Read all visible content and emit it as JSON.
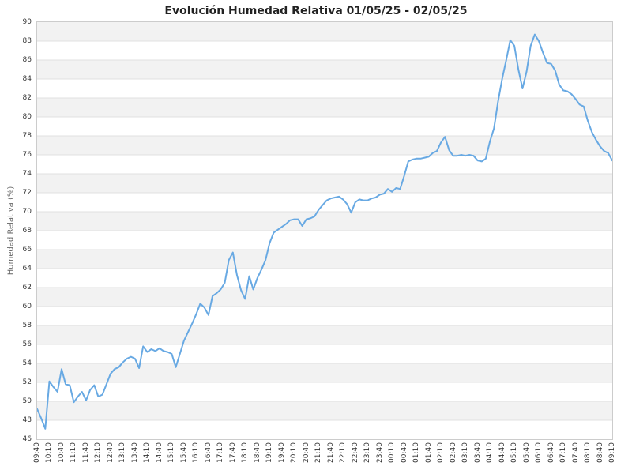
{
  "chart_data": {
    "type": "line",
    "title": "Evolución Humedad Relativa 01/05/25 - 02/05/25",
    "xlabel": "",
    "ylabel": "Humedad Relativa (%)",
    "ylim": [
      46,
      90
    ],
    "ytick_step": 2,
    "grid": true,
    "legend": false,
    "series_name": "Humedad Relativa",
    "colors": {
      "line": "#68a9e3",
      "band": "#f2f2f2",
      "band_alt": "#ffffff",
      "grid": "#e0e0e0",
      "border": "#cccccc",
      "title": "#222222",
      "tick": "#333333",
      "axis_title": "#666666"
    },
    "yticks": [
      90,
      88,
      86,
      84,
      82,
      80,
      78,
      76,
      74,
      72,
      70,
      68,
      66,
      64,
      62,
      60,
      58,
      56,
      54,
      52,
      50,
      48,
      46
    ],
    "xticks": [
      "09:40",
      "10:10",
      "10:40",
      "11:10",
      "11:40",
      "12:10",
      "12:40",
      "13:10",
      "13:40",
      "14:10",
      "14:40",
      "15:10",
      "15:40",
      "16:10",
      "16:40",
      "17:10",
      "17:40",
      "18:10",
      "18:40",
      "19:10",
      "19:40",
      "20:10",
      "20:40",
      "21:10",
      "21:40",
      "22:10",
      "22:40",
      "23:10",
      "23:40",
      "00:10",
      "00:40",
      "01:10",
      "01:40",
      "02:10",
      "02:40",
      "03:10",
      "03:40",
      "04:10",
      "04:40",
      "05:10",
      "05:40",
      "06:10",
      "06:40",
      "07:10",
      "07:40",
      "08:10",
      "08:40",
      "09:10"
    ],
    "x": [
      "09:40",
      "09:50",
      "10:00",
      "10:10",
      "10:20",
      "10:30",
      "10:40",
      "10:50",
      "11:00",
      "11:10",
      "11:20",
      "11:30",
      "11:40",
      "11:50",
      "12:00",
      "12:10",
      "12:20",
      "12:30",
      "12:40",
      "12:50",
      "13:00",
      "13:10",
      "13:20",
      "13:30",
      "13:40",
      "13:50",
      "14:00",
      "14:10",
      "14:20",
      "14:30",
      "14:40",
      "14:50",
      "15:00",
      "15:10",
      "15:20",
      "15:30",
      "15:40",
      "15:50",
      "16:00",
      "16:10",
      "16:20",
      "16:30",
      "16:40",
      "16:50",
      "17:00",
      "17:10",
      "17:20",
      "17:30",
      "17:40",
      "17:50",
      "18:00",
      "18:10",
      "18:20",
      "18:30",
      "18:40",
      "18:50",
      "19:00",
      "19:10",
      "19:20",
      "19:30",
      "19:40",
      "19:50",
      "20:00",
      "20:10",
      "20:20",
      "20:30",
      "20:40",
      "20:50",
      "21:00",
      "21:10",
      "21:20",
      "21:30",
      "21:40",
      "21:50",
      "22:00",
      "22:10",
      "22:20",
      "22:30",
      "22:40",
      "22:50",
      "23:00",
      "23:10",
      "23:20",
      "23:30",
      "23:40",
      "23:50",
      "00:00",
      "00:10",
      "00:20",
      "00:30",
      "00:40",
      "00:50",
      "01:00",
      "01:10",
      "01:20",
      "01:30",
      "01:40",
      "01:50",
      "02:00",
      "02:10",
      "02:20",
      "02:30",
      "02:40",
      "02:50",
      "03:00",
      "03:10",
      "03:20",
      "03:30",
      "03:40",
      "03:50",
      "04:00",
      "04:10",
      "04:20",
      "04:30",
      "04:40",
      "04:50",
      "05:00",
      "05:10",
      "05:20",
      "05:30",
      "05:40",
      "05:50",
      "06:00",
      "06:10",
      "06:20",
      "06:30",
      "06:40",
      "06:50",
      "07:00",
      "07:10",
      "07:20",
      "07:30",
      "07:40",
      "07:50",
      "08:00",
      "08:10",
      "08:20",
      "08:30",
      "08:40",
      "08:50",
      "09:00",
      "09:10"
    ],
    "values": [
      49.2,
      48.2,
      47.1,
      52.1,
      51.5,
      51.0,
      53.4,
      51.8,
      51.7,
      49.9,
      50.5,
      51.0,
      50.1,
      51.2,
      51.7,
      50.5,
      50.7,
      51.8,
      52.9,
      53.4,
      53.6,
      54.1,
      54.5,
      54.7,
      54.5,
      53.5,
      55.8,
      55.2,
      55.5,
      55.3,
      55.6,
      55.3,
      55.2,
      55.0,
      53.6,
      55.0,
      56.4,
      57.3,
      58.2,
      59.2,
      60.3,
      59.9,
      59.1,
      61.1,
      61.4,
      61.8,
      62.5,
      64.9,
      65.7,
      63.3,
      61.7,
      60.8,
      63.2,
      61.8,
      63.0,
      63.9,
      64.9,
      66.7,
      67.8,
      68.1,
      68.4,
      68.7,
      69.1,
      69.2,
      69.2,
      68.5,
      69.2,
      69.3,
      69.5,
      70.2,
      70.7,
      71.2,
      71.4,
      71.5,
      71.6,
      71.3,
      70.8,
      69.9,
      71.0,
      71.3,
      71.2,
      71.2,
      71.4,
      71.5,
      71.8,
      71.9,
      72.4,
      72.1,
      72.5,
      72.4,
      73.8,
      75.3,
      75.5,
      75.6,
      75.6,
      75.7,
      75.8,
      76.2,
      76.4,
      77.3,
      77.9,
      76.5,
      75.9,
      75.9,
      76.0,
      75.9,
      76.0,
      75.9,
      75.4,
      75.3,
      75.6,
      77.4,
      78.8,
      81.6,
      84.0,
      86.0,
      88.1,
      87.5,
      85.0,
      83.0,
      84.8,
      87.5,
      88.7,
      88.0,
      86.8,
      85.7,
      85.6,
      84.9,
      83.4,
      82.8,
      82.7,
      82.4,
      81.9,
      81.3,
      81.1,
      79.6,
      78.4,
      77.6,
      76.9,
      76.4,
      76.2,
      75.4
    ]
  }
}
